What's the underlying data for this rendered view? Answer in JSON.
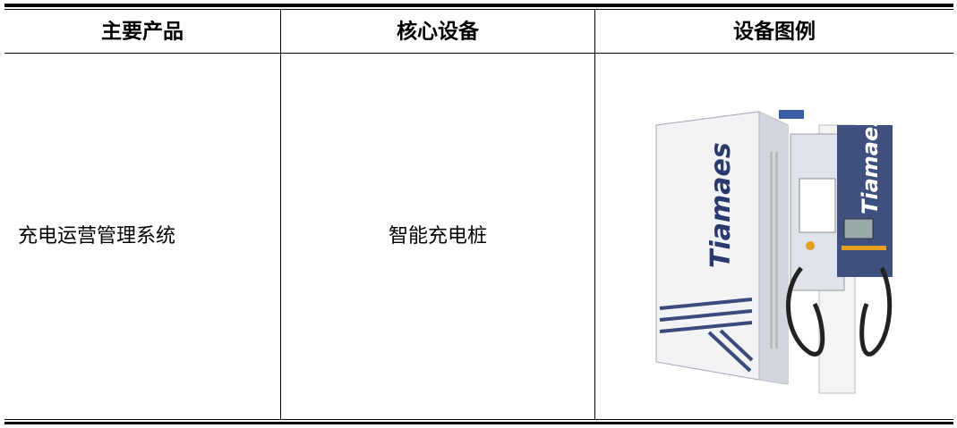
{
  "table": {
    "header": [
      "主要产品",
      "核心设备",
      "设备图例"
    ],
    "rows": [
      [
        "充电运营管理系统",
        "智能充电桩"
      ]
    ],
    "image_labels": [
      "Tiamaes",
      "Tiamaes"
    ]
  }
}
